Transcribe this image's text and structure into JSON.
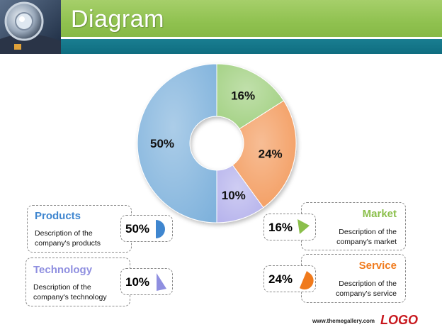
{
  "slide": {
    "title": "Diagram"
  },
  "chart_data": {
    "type": "pie",
    "variant": "donut",
    "categories": [
      "Market",
      "Service",
      "Technology",
      "Products"
    ],
    "values": [
      16,
      24,
      10,
      50
    ],
    "labels": [
      "16%",
      "24%",
      "10%",
      "50%"
    ],
    "colors": [
      "#9fcf7e",
      "#f39a5c",
      "#b5b2ec",
      "#7fb2dc"
    ]
  },
  "cards": {
    "products": {
      "title": "Products",
      "desc1": "Description of the",
      "desc2": "company's products",
      "value": "50%",
      "color": "#3f86cf",
      "icon": "quarter-pie-icon"
    },
    "technology": {
      "title": "Technology",
      "desc1": "Description of the",
      "desc2": "company's technology",
      "value": "10%",
      "color": "#8f8fe0",
      "icon": "slice-pie-icon"
    },
    "market": {
      "title": "Market",
      "desc1": "Description of the",
      "desc2": "company's market",
      "value": "16%",
      "color": "#8bbf4b",
      "icon": "slice-pie-icon"
    },
    "service": {
      "title": "Service",
      "desc1": "Description of the",
      "desc2": "company's service",
      "value": "24%",
      "color": "#f07a1c",
      "icon": "slice-pie-icon"
    }
  },
  "footer": {
    "url": "www.themegallery.com",
    "logo": "LOGO"
  }
}
